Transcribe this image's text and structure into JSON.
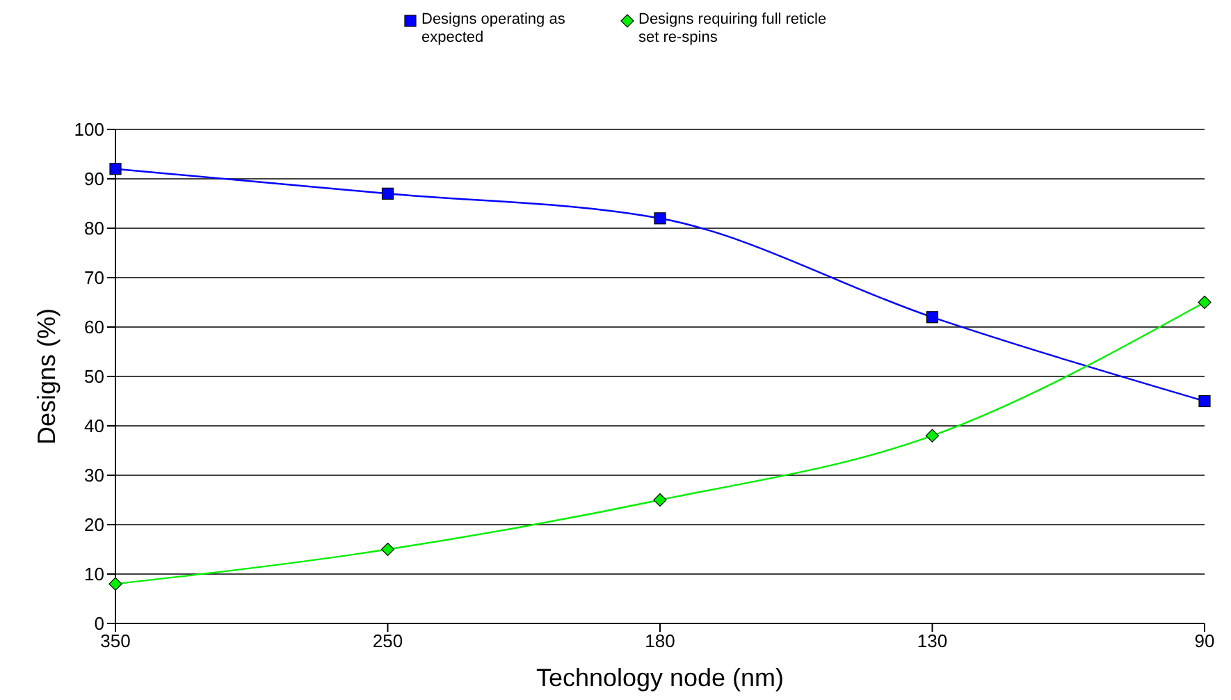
{
  "chart_data": {
    "type": "line",
    "xlabel": "Technology node (nm)",
    "ylabel": "Designs (%)",
    "categories": [
      "350",
      "250",
      "180",
      "130",
      "90"
    ],
    "series": [
      {
        "name": "Designs operating as expected",
        "color": "#0000ff",
        "marker": "square",
        "values": [
          92,
          87,
          82,
          62,
          45
        ]
      },
      {
        "name": "Designs requiring full reticle set re-spins",
        "color": "#00ee00",
        "marker": "diamond",
        "values": [
          8,
          15,
          25,
          38,
          65
        ]
      }
    ],
    "ylim": [
      0,
      100
    ],
    "yticks": [
      0,
      10,
      20,
      30,
      40,
      50,
      60,
      70,
      80,
      90,
      100
    ],
    "grid": "y",
    "legend": "top",
    "line_style": "solid"
  }
}
